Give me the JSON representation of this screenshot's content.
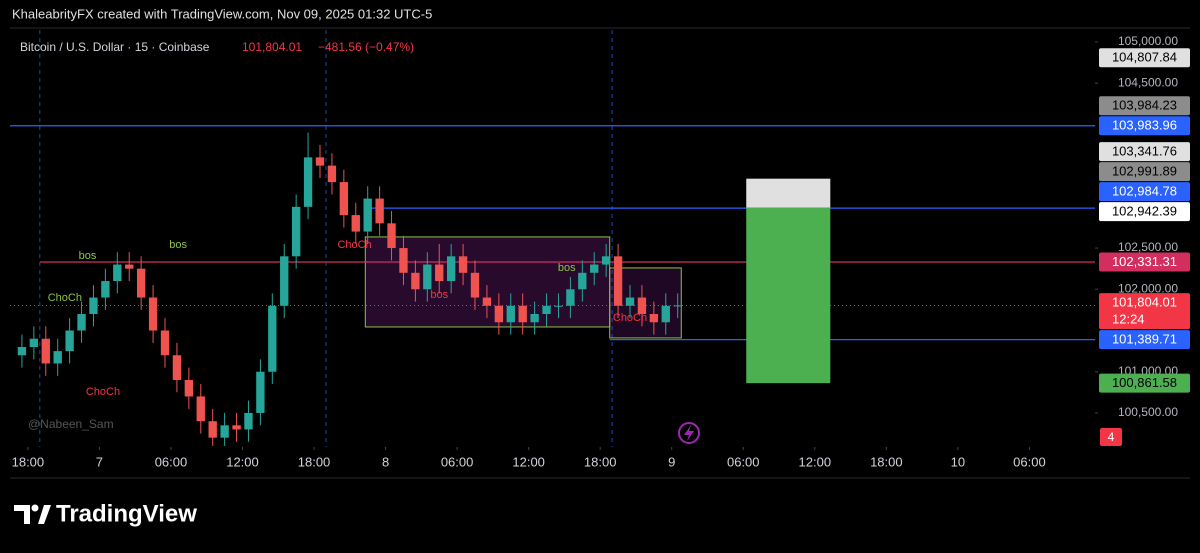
{
  "header": {
    "caption": "KhaleabrityFX created with TradingView.com, Nov 09, 2025 01:32 UTC-5"
  },
  "chart_data": {
    "type": "candlestick",
    "legend": {
      "symbol": "Bitcoin / U.S. Dollar · 15 · Coinbase",
      "price": "101,804.01",
      "change": "−481.56 (−0.47%)"
    },
    "watermark": "@Nabeen_Sam",
    "x": [
      -1,
      0,
      1,
      2,
      3,
      4,
      5,
      6,
      7,
      8,
      9,
      10,
      11,
      12,
      13,
      14,
      15,
      16,
      17,
      18,
      19,
      20,
      21,
      22,
      23,
      24,
      25,
      26,
      27,
      28,
      29,
      30,
      31,
      32,
      33,
      34,
      35,
      36,
      37,
      38,
      39,
      40,
      41,
      42,
      43,
      44,
      45,
      46,
      47,
      48,
      49,
      50,
      51,
      52,
      53,
      54
    ],
    "open": [
      101200,
      101300,
      101400,
      101100,
      101250,
      101500,
      101700,
      101900,
      102100,
      102300,
      102250,
      101900,
      101500,
      101200,
      100900,
      100700,
      100400,
      100200,
      100350,
      100300,
      100500,
      101000,
      101800,
      102400,
      103000,
      103600,
      103500,
      103300,
      102900,
      102700,
      103100,
      102800,
      102500,
      102200,
      102000,
      102300,
      102100,
      102400,
      102200,
      101900,
      101800,
      101600,
      101800,
      101600,
      101700,
      101800,
      101800,
      102000,
      102200,
      102300,
      102400,
      101800,
      101900,
      101700,
      101600,
      101800
    ],
    "high": [
      101450,
      101550,
      101550,
      101400,
      101650,
      101850,
      102050,
      102250,
      102450,
      102450,
      102400,
      102050,
      101650,
      101350,
      101050,
      100850,
      100550,
      100500,
      100500,
      100650,
      101150,
      101950,
      102550,
      103150,
      103900,
      103750,
      103650,
      103450,
      103050,
      103250,
      103250,
      102950,
      102650,
      102350,
      102450,
      102550,
      102550,
      102550,
      102350,
      102050,
      101950,
      101950,
      101950,
      101850,
      101950,
      101950,
      102150,
      102350,
      102450,
      102550,
      102550,
      102050,
      102050,
      101850,
      101950,
      101950
    ],
    "low": [
      101050,
      101150,
      100950,
      100950,
      101100,
      101350,
      101550,
      101750,
      101950,
      102100,
      101750,
      101350,
      101050,
      100750,
      100550,
      100250,
      100100,
      100100,
      100150,
      100150,
      100350,
      100850,
      101650,
      102250,
      102850,
      103350,
      103150,
      102750,
      102550,
      102550,
      102650,
      102350,
      102050,
      101850,
      101850,
      101950,
      101950,
      102050,
      101750,
      101650,
      101450,
      101450,
      101450,
      101450,
      101550,
      101650,
      101650,
      101850,
      102050,
      102150,
      101650,
      101650,
      101550,
      101450,
      101450,
      101650
    ],
    "close": [
      101300,
      101400,
      101100,
      101250,
      101500,
      101700,
      101900,
      102100,
      102300,
      102250,
      101900,
      101500,
      101200,
      100900,
      100700,
      100400,
      100200,
      100350,
      100300,
      100500,
      101000,
      101800,
      102400,
      103000,
      103600,
      103500,
      103300,
      102900,
      102700,
      103100,
      102800,
      102500,
      102200,
      102000,
      102300,
      102100,
      102400,
      102200,
      101900,
      101800,
      101600,
      101800,
      101600,
      101700,
      101800,
      101800,
      102000,
      102200,
      102300,
      102400,
      101800,
      101900,
      101700,
      101600,
      101800,
      101804.01
    ],
    "up_color": "#26a69a",
    "down_color": "#ef5350",
    "xlim": [
      -1.5,
      89.5
    ],
    "xticks": [
      {
        "value": 0,
        "label": "18:00"
      },
      {
        "value": 6,
        "label": "7"
      },
      {
        "value": 12,
        "label": "06:00"
      },
      {
        "value": 18,
        "label": "12:00"
      },
      {
        "value": 24,
        "label": "18:00"
      },
      {
        "value": 30,
        "label": "8"
      },
      {
        "value": 36,
        "label": "06:00"
      },
      {
        "value": 42,
        "label": "12:00"
      },
      {
        "value": 48,
        "label": "18:00"
      },
      {
        "value": 54,
        "label": "9"
      },
      {
        "value": 60,
        "label": "06:00"
      },
      {
        "value": 66,
        "label": "12:00"
      },
      {
        "value": 72,
        "label": "18:00"
      },
      {
        "value": 78,
        "label": "10"
      },
      {
        "value": 84,
        "label": "06:00"
      }
    ],
    "ylim": [
      100087,
      105145
    ],
    "yticks": [
      {
        "value": 100500,
        "label": "100,500.00"
      },
      {
        "value": 101000,
        "label": "101,000.00"
      },
      {
        "value": 102000,
        "label": "102,000.00"
      },
      {
        "value": 102500,
        "label": "102,500.00"
      },
      {
        "value": 104500,
        "label": "104,500.00"
      },
      {
        "value": 105000,
        "label": "105,000.00"
      }
    ],
    "grid": false,
    "session_breaks": [
      1,
      25,
      49
    ],
    "price_tags": [
      {
        "value": 104807.84,
        "label": "104,807.84",
        "color": "#e0e0e0",
        "text_color": "#000000"
      },
      {
        "value": 103984.23,
        "label": "103,984.23",
        "color": "#8c8c8c",
        "text_color": "#000000"
      },
      {
        "value": 103983.96,
        "label": "103,983.96",
        "color": "#2962ff",
        "text_color": "#ffffff",
        "line_from": -1.5
      },
      {
        "value": 103341.76,
        "label": "103,341.76",
        "color": "#e0e0e0",
        "text_color": "#000000"
      },
      {
        "value": 102991.89,
        "label": "102,991.89",
        "color": "#8c8c8c",
        "text_color": "#000000"
      },
      {
        "value": 102984.78,
        "label": "102,984.78",
        "color": "#2962ff",
        "text_color": "#ffffff",
        "line_from": 28.6
      },
      {
        "value": 102942.39,
        "label": "102,942.39",
        "color": "#ffffff",
        "text_color": "#000000"
      },
      {
        "value": 102331.31,
        "label": "102,331.31",
        "color": "#d32f5e",
        "text_color": "#ffffff",
        "line_from": 1
      },
      {
        "value": 101804.01,
        "label": "101,804.01",
        "sublabel": "12:24",
        "color": "#f23645",
        "text_color": "#ffffff",
        "line_from": -1.5,
        "line_style": "dotted"
      },
      {
        "value": 101389.71,
        "label": "101,389.71",
        "color": "#2962ff",
        "text_color": "#ffffff",
        "line_from": 48.8
      },
      {
        "value": 100861.58,
        "label": "100,861.58",
        "color": "#4caf50",
        "text_color": "#000000"
      }
    ],
    "alert_badge": "4",
    "annotations": [
      {
        "text": "bos",
        "x": 12.6,
        "y": 102538,
        "color": "#8bc34a"
      },
      {
        "text": "bos",
        "x": 5.0,
        "y": 102404,
        "color": "#8bc34a"
      },
      {
        "text": "ChoCh",
        "x": 3.1,
        "y": 101895,
        "color": "#8bc34a"
      },
      {
        "text": "ChoCh",
        "x": 6.3,
        "y": 100755,
        "color": "#f23645"
      },
      {
        "text": "ChoCh",
        "x": 27.4,
        "y": 102538,
        "color": "#f23645"
      },
      {
        "text": "bos",
        "x": 34.5,
        "y": 101931,
        "color": "#f23645"
      },
      {
        "text": "bos",
        "x": 45.2,
        "y": 102259,
        "color": "#8bc34a"
      },
      {
        "text": "ChoCh",
        "x": 50.5,
        "y": 101652,
        "color": "#f23645"
      }
    ],
    "boxes": [
      {
        "x0": 28.3,
        "x1": 48.8,
        "y0": 101543,
        "y1": 102635,
        "fill": "rgba(156,39,176,0.25)",
        "stroke": "#8bc34a"
      },
      {
        "x0": 48.8,
        "x1": 54.8,
        "y0": 101410,
        "y1": 102259,
        "fill": "rgba(156,39,176,0.2)",
        "stroke": "#8bc34a"
      }
    ],
    "position": {
      "x0": 60.25,
      "x1": 67.3,
      "target_color": "#e0e0e0",
      "body_color": "#4caf50"
    }
  },
  "footer": {
    "brand": "TradingView"
  }
}
